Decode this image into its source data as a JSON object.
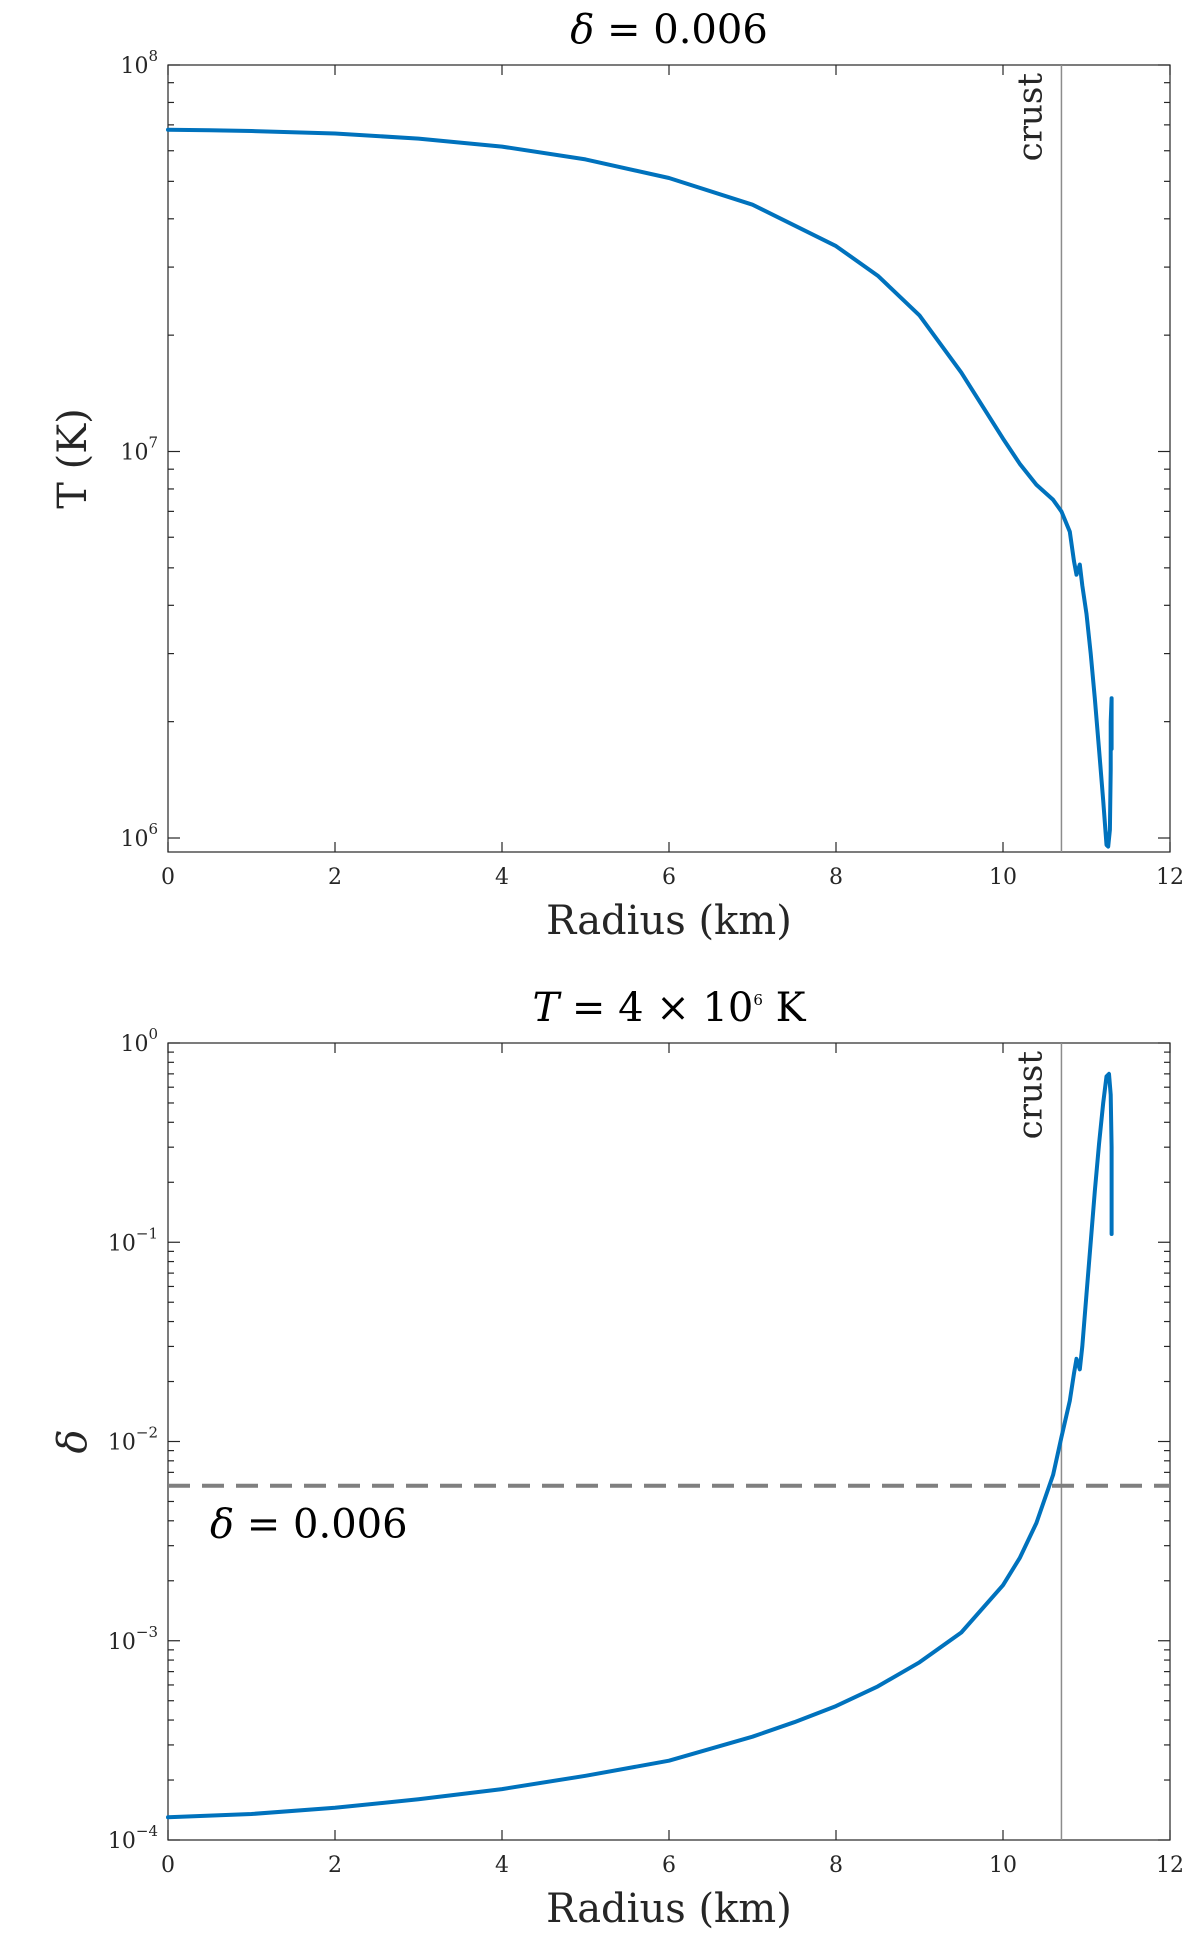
{
  "chart_data": [
    {
      "type": "line",
      "title": {
        "symbol": "δ",
        "rest": " = 0.006"
      },
      "xlabel": "Radius (km)",
      "ylabel": "T (K)",
      "xlim": [
        0,
        12
      ],
      "ylim": [
        920000,
        100000000
      ],
      "yscale": "log",
      "grid": false,
      "xticks": [
        0,
        2,
        4,
        6,
        8,
        10,
        12
      ],
      "yticks": [
        {
          "value": 1000000,
          "base": "10",
          "exp": "6"
        },
        {
          "value": 10000000,
          "base": "10",
          "exp": "7"
        },
        {
          "value": 100000000,
          "base": "10",
          "exp": "8"
        }
      ],
      "vline": {
        "x": 10.7,
        "label": "crust"
      },
      "series": [
        {
          "color": "#0072BD",
          "x": [
            0,
            0.5,
            1,
            2,
            3,
            4,
            5,
            6,
            7,
            8,
            8.5,
            9,
            9.5,
            10,
            10.2,
            10.4,
            10.6,
            10.7,
            10.8,
            10.85,
            10.88,
            10.92,
            10.95,
            11.0,
            11.05,
            11.1,
            11.15,
            11.2,
            11.24,
            11.26,
            11.28,
            11.29,
            11.29,
            11.3,
            11.3
          ],
          "y": [
            68000000,
            67800000,
            67500000,
            66500000,
            64500000,
            61500000,
            57000000,
            51000000,
            43500000,
            34000000,
            28500000,
            22500000,
            16000000,
            10800000,
            9300000,
            8200000,
            7500000,
            7000000,
            6200000,
            5200000,
            4800000,
            5100000,
            4500000,
            3800000,
            3000000,
            2300000,
            1700000,
            1250000,
            960000,
            950000,
            1050000,
            1500000,
            2000000,
            2300000,
            1700000
          ]
        }
      ]
    },
    {
      "type": "line",
      "title": {
        "symbol": "T",
        "rest": " = 4 × 10",
        "exp": "6",
        "unit": " K"
      },
      "xlabel": "Radius (km)",
      "ylabel": "δ",
      "xlim": [
        0,
        12
      ],
      "ylim": [
        0.0001,
        1
      ],
      "yscale": "log",
      "grid": false,
      "xticks": [
        0,
        2,
        4,
        6,
        8,
        10,
        12
      ],
      "yticks": [
        {
          "value": 0.0001,
          "base": "10",
          "exp": "−4"
        },
        {
          "value": 0.001,
          "base": "10",
          "exp": "−3"
        },
        {
          "value": 0.01,
          "base": "10",
          "exp": "−2"
        },
        {
          "value": 0.1,
          "base": "10",
          "exp": "−1"
        },
        {
          "value": 1,
          "base": "10",
          "exp": "0"
        }
      ],
      "vline": {
        "x": 10.7,
        "label": "crust"
      },
      "hline": {
        "y": 0.006,
        "label_symbol": "δ",
        "label_rest": " = 0.006"
      },
      "series": [
        {
          "color": "#0072BD",
          "x": [
            0,
            1,
            2,
            3,
            4,
            5,
            6,
            7,
            7.5,
            8,
            8.5,
            9,
            9.5,
            10,
            10.2,
            10.4,
            10.6,
            10.7,
            10.8,
            10.85,
            10.88,
            10.92,
            10.95,
            11.0,
            11.05,
            11.1,
            11.15,
            11.2,
            11.24,
            11.27,
            11.29,
            11.3,
            11.3
          ],
          "y": [
            0.00013,
            0.000135,
            0.000145,
            0.00016,
            0.00018,
            0.00021,
            0.00025,
            0.00033,
            0.00039,
            0.00047,
            0.00059,
            0.00078,
            0.0011,
            0.0019,
            0.0026,
            0.0039,
            0.0068,
            0.0105,
            0.016,
            0.022,
            0.026,
            0.023,
            0.03,
            0.055,
            0.1,
            0.18,
            0.31,
            0.5,
            0.68,
            0.7,
            0.55,
            0.3,
            0.11
          ]
        }
      ]
    }
  ]
}
